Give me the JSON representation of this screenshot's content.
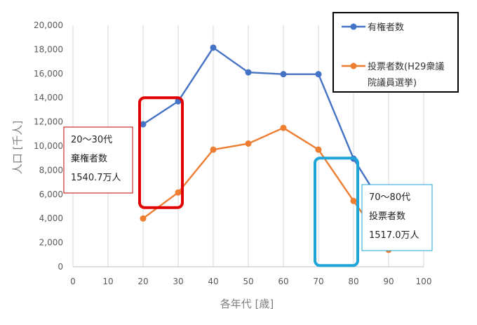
{
  "chart_data": {
    "type": "line",
    "xlabel": "各年代 [歳]",
    "ylabel": "人口 [千人]",
    "xlim": [
      0,
      100
    ],
    "ylim": [
      0,
      20000
    ],
    "xticks": [
      0,
      10,
      20,
      30,
      40,
      50,
      60,
      70,
      80,
      90,
      100
    ],
    "yticks": [
      0,
      2000,
      4000,
      6000,
      8000,
      10000,
      12000,
      14000,
      16000,
      18000,
      20000
    ],
    "ytick_labels": [
      "0",
      "2,000",
      "4,000",
      "6,000",
      "8,000",
      "10,000",
      "12,000",
      "14,000",
      "16,000",
      "18,000",
      "20,000"
    ],
    "grid": "vertical",
    "legend_position": "top-right",
    "series": [
      {
        "name": "有権者数",
        "color": "#4472c4",
        "x": [
          20,
          30,
          40,
          50,
          60,
          70,
          80,
          90
        ],
        "values": [
          11800,
          13700,
          18150,
          16100,
          15950,
          15950,
          8950,
          4300
        ]
      },
      {
        "name": "投票者数(H29衆議院議員選挙)",
        "legend_lines": [
          "投票者数(H29衆議",
          "院議員選挙)"
        ],
        "color": "#ed7d31",
        "x": [
          20,
          30,
          40,
          50,
          60,
          70,
          80,
          90
        ],
        "values": [
          4000,
          6150,
          9700,
          10200,
          11500,
          9700,
          5450,
          1400
        ]
      }
    ],
    "annotations": [
      {
        "lines": [
          "20～30代",
          "棄権者数",
          "1540.7万人"
        ],
        "highlight_x": [
          20,
          30
        ],
        "highlight_color": "#e00000",
        "box_border_color": "#c00000"
      },
      {
        "lines": [
          "70～80代",
          "投票者数",
          "1517.0万人"
        ],
        "highlight_x": [
          70,
          80
        ],
        "highlight_color": "#1fa5d8",
        "box_border_color": "#1fa5d8"
      }
    ]
  }
}
